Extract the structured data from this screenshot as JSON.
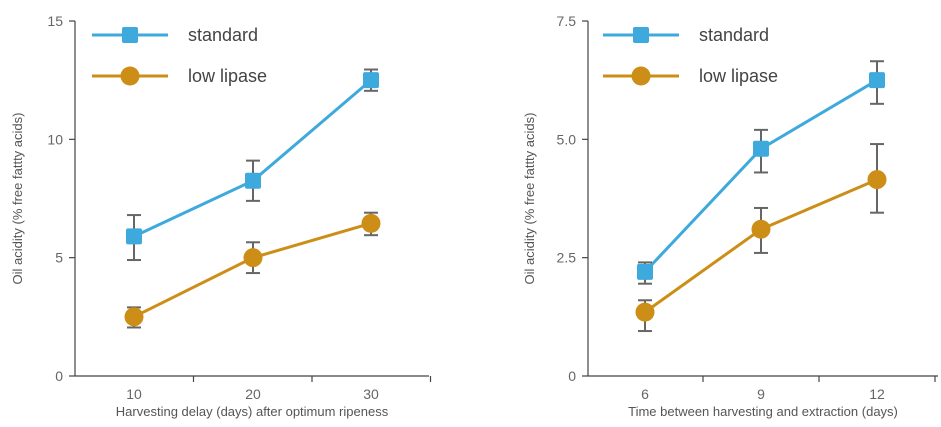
{
  "chart_data": [
    {
      "type": "line",
      "xlabel": "Harvesting delay (days) after optimum ripeness",
      "ylabel": "Oil acidity (% free fattty acids)",
      "x": [
        10,
        20,
        30
      ],
      "x_ticks": [
        "10",
        "20",
        "30"
      ],
      "y_ticks": [
        "0",
        "5",
        "10",
        "15"
      ],
      "ylim": [
        0,
        15
      ],
      "grid": false,
      "legend_position": "top-left",
      "series": [
        {
          "name": "standard",
          "marker": "square",
          "color": "#3ea9dc",
          "values": [
            5.9,
            8.25,
            12.5
          ],
          "err_low": [
            4.9,
            7.4,
            12.05
          ],
          "err_high": [
            6.8,
            9.1,
            12.95
          ]
        },
        {
          "name": "low lipase",
          "marker": "circle",
          "color": "#cc8e16",
          "values": [
            2.5,
            5.0,
            6.45
          ],
          "err_low": [
            2.05,
            4.35,
            5.95
          ],
          "err_high": [
            2.9,
            5.65,
            6.9
          ]
        }
      ]
    },
    {
      "type": "line",
      "xlabel": "Time between harvesting and extraction (days)",
      "ylabel": "Oil acidity (% free fattty acids)",
      "x": [
        6,
        9,
        12
      ],
      "x_ticks": [
        "6",
        "9",
        "12"
      ],
      "y_ticks": [
        "0",
        "2.5",
        "5.0",
        "7.5"
      ],
      "ylim": [
        0,
        7.5
      ],
      "grid": false,
      "legend_position": "top-left",
      "series": [
        {
          "name": "standard",
          "marker": "square",
          "color": "#3ea9dc",
          "values": [
            2.2,
            4.8,
            6.25
          ],
          "err_low": [
            1.95,
            4.3,
            5.75
          ],
          "err_high": [
            2.4,
            5.2,
            6.65
          ]
        },
        {
          "name": "low lipase",
          "marker": "circle",
          "color": "#cc8e16",
          "values": [
            1.35,
            3.1,
            4.15
          ],
          "err_low": [
            0.95,
            2.6,
            3.45
          ],
          "err_high": [
            1.6,
            3.55,
            4.9
          ]
        }
      ]
    }
  ]
}
